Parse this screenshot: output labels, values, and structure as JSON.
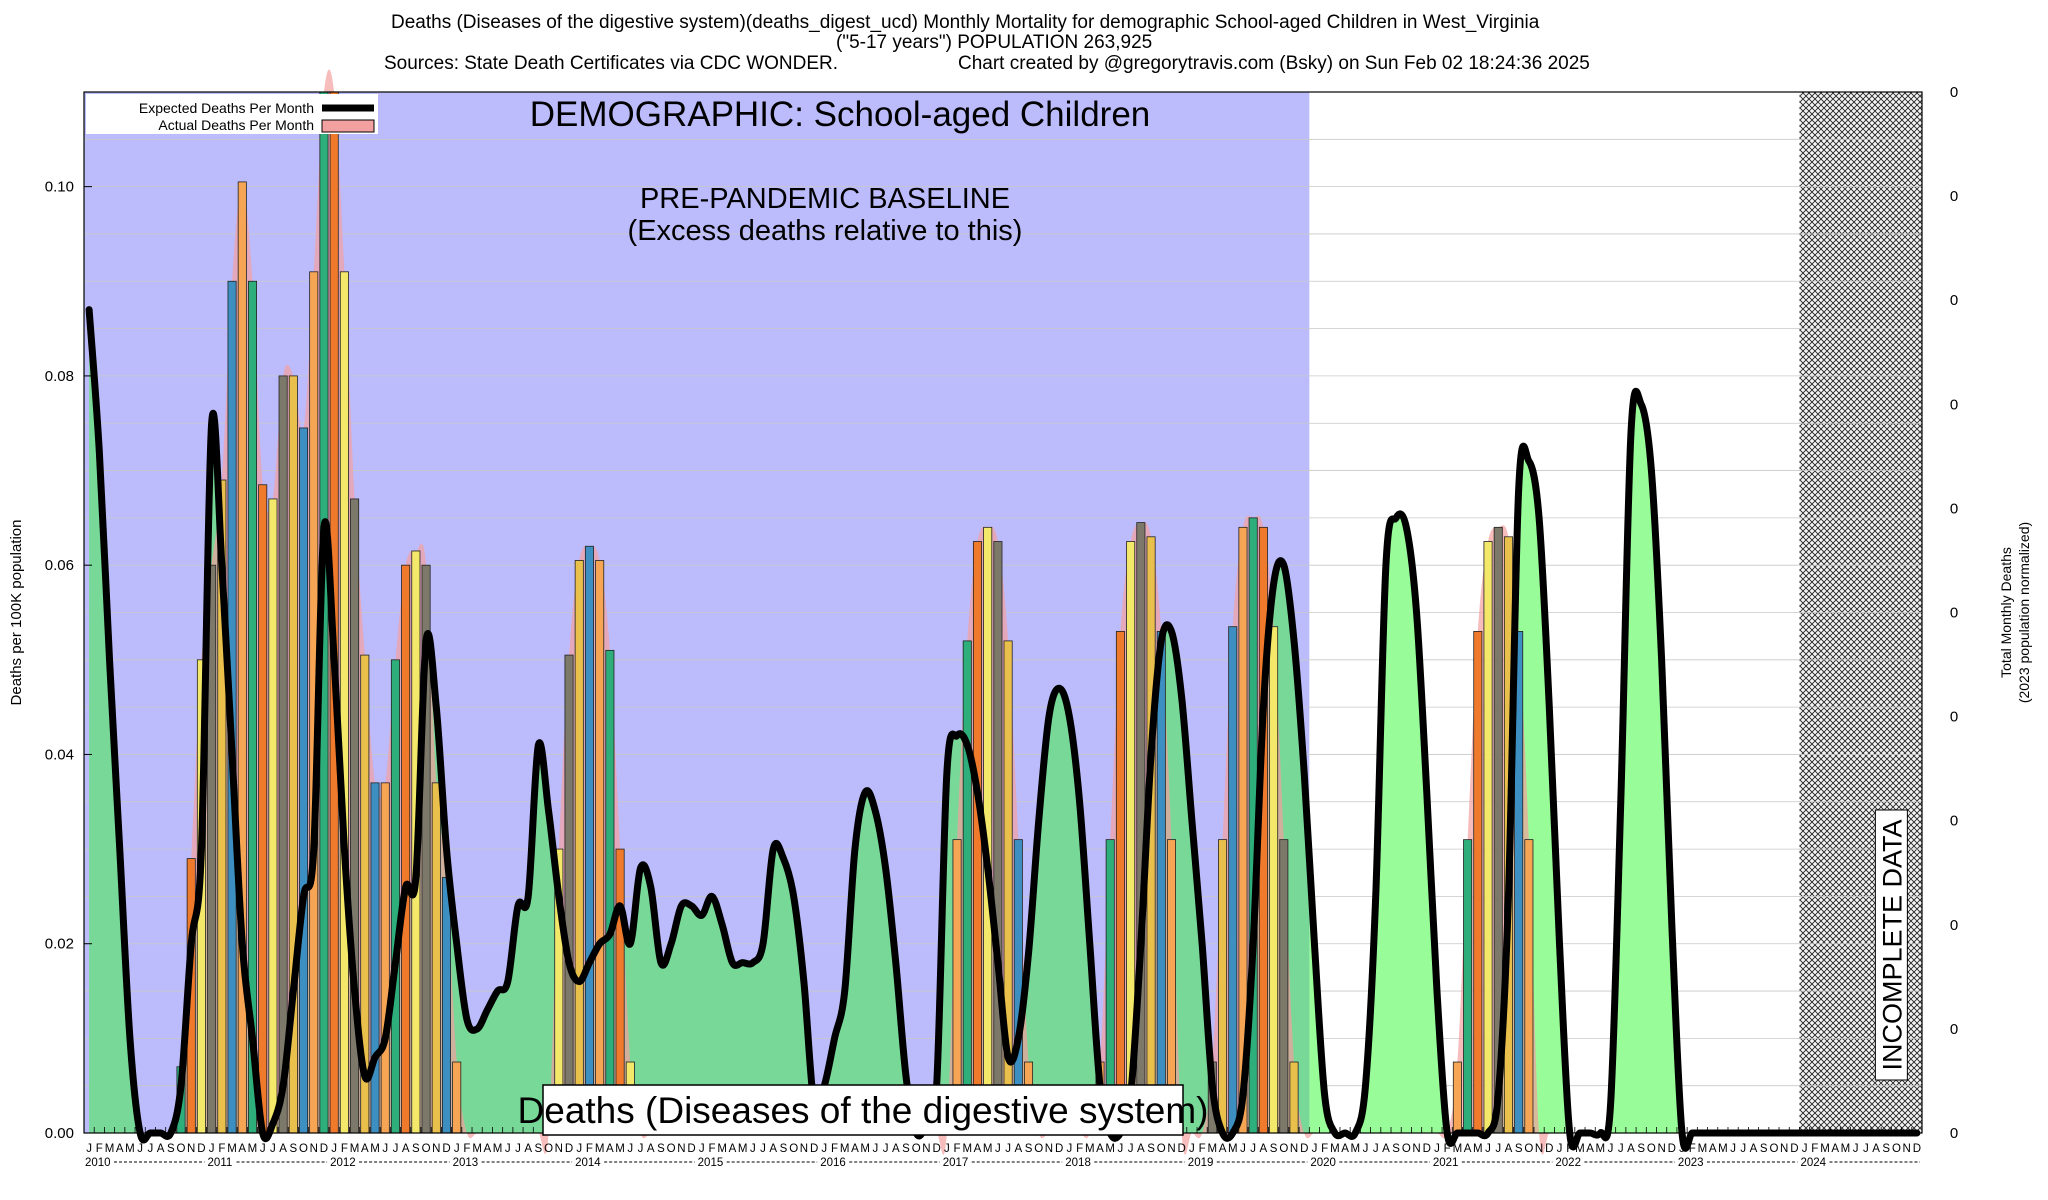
{
  "header": {
    "title_line1": "Deaths (Diseases of the digestive system)(deaths_digest_ucd) Monthly Mortality for demographic School-aged Children in West_Virginia",
    "title_line2": "(\"5-17 years\") POPULATION 263,925",
    "sources": "Sources: State Death Certificates via CDC WONDER.",
    "created_by": "Chart created by @gregorytravis.com (Bsky) on Sun Feb 02 18:24:36 2025"
  },
  "chart_data": {
    "type": "bar",
    "title": "Deaths (Diseases of the digestive system)",
    "demographic_label": "DEMOGRAPHIC: School-aged Children",
    "baseline_label_line1": "PRE-PANDEMIC BASELINE",
    "baseline_label_line2": "(Excess deaths relative to this)",
    "incomplete_label": "INCOMPLETE DATA",
    "ylabel": "Deaths per 100K population",
    "ylabel_right_line1": "Total Monthly Deaths",
    "ylabel_right_line2": "(2023 population normalized)",
    "ylim": [
      0,
      0.11
    ],
    "y_ticks": [
      0.0,
      0.02,
      0.04,
      0.06,
      0.08,
      0.1
    ],
    "y_tick_labels": [
      "0.00",
      "0.02",
      "0.04",
      "0.06",
      "0.08",
      "0.10"
    ],
    "right_tick_labels": [
      "0",
      "0",
      "0",
      "0",
      "0",
      "0",
      "0",
      "0",
      "0",
      "0",
      "0"
    ],
    "legend": {
      "placement": "top-left",
      "expected": "Expected Deaths Per Month",
      "actual": "Actual Deaths Per Month"
    },
    "baseline_period": {
      "start": "2010-01",
      "end": "2019-12"
    },
    "incomplete_period": {
      "start": "2024-01",
      "end": "2024-12"
    },
    "month_letters": [
      "J",
      "F",
      "M",
      "A",
      "M",
      "J",
      "J",
      "A",
      "S",
      "O",
      "N",
      "D"
    ],
    "years": [
      "2010",
      "2011",
      "2012",
      "2013",
      "2014",
      "2015",
      "2016",
      "2017",
      "2018",
      "2019",
      "2020",
      "2021",
      "2022",
      "2023",
      "2024"
    ],
    "x_start": "2010-01",
    "actual_monthly": [
      0,
      0,
      0,
      0,
      0,
      0,
      0,
      0,
      0,
      0.007,
      0.029,
      0.05,
      0.06,
      0.069,
      0.09,
      0.1005,
      0.09,
      0.0685,
      0.067,
      0.08,
      0.08,
      0.0745,
      0.091,
      0.112,
      0.112,
      0.091,
      0.067,
      0.0505,
      0.037,
      0.037,
      0.05,
      0.06,
      0.0615,
      0.06,
      0.037,
      0.027,
      0.0075,
      0,
      0,
      0,
      0,
      0,
      0,
      0,
      0,
      0,
      0.03,
      0.0505,
      0.0605,
      0.062,
      0.0605,
      0.051,
      0.03,
      0.0075,
      0,
      0,
      0,
      0,
      0,
      0,
      0,
      0,
      0,
      0,
      0,
      0,
      0,
      0,
      0,
      0,
      0,
      0,
      0,
      0,
      0,
      0,
      0,
      0,
      0,
      0,
      0,
      0,
      0,
      0,
      0,
      0.031,
      0.052,
      0.0625,
      0.064,
      0.0625,
      0.052,
      0.031,
      0.0075,
      0,
      0,
      0,
      0,
      0,
      0,
      0.0075,
      0.031,
      0.053,
      0.0625,
      0.0645,
      0.063,
      0.053,
      0.031,
      0,
      0,
      0,
      0.0075,
      0.031,
      0.0535,
      0.064,
      0.065,
      0.064,
      0.0535,
      0.031,
      0.0075,
      0,
      0,
      0,
      0,
      0,
      0,
      0,
      0,
      0,
      0,
      0,
      0,
      0,
      0,
      0,
      0.0075,
      0.031,
      0.053,
      0.0625,
      0.064,
      0.063,
      0.053,
      0.031,
      0,
      0,
      0,
      0,
      0,
      0,
      0,
      0,
      0,
      0,
      0,
      0,
      0,
      0,
      0,
      0,
      0,
      0,
      0,
      0,
      0,
      0,
      0,
      0,
      0,
      0,
      0,
      0,
      0,
      0,
      0,
      0,
      0,
      0,
      0,
      0,
      0,
      0
    ],
    "expected_monthly": [
      0.087,
      0.072,
      0.05,
      0.03,
      0.01,
      0,
      0,
      0,
      0,
      0.005,
      0.02,
      0.03,
      0.075,
      0.06,
      0.04,
      0.02,
      0.01,
      0,
      0.001,
      0.005,
      0.015,
      0.025,
      0.03,
      0.064,
      0.05,
      0.03,
      0.015,
      0.006,
      0.008,
      0.01,
      0.018,
      0.026,
      0.027,
      0.052,
      0.045,
      0.03,
      0.02,
      0.012,
      0.011,
      0.013,
      0.015,
      0.016,
      0.024,
      0.025,
      0.041,
      0.034,
      0.025,
      0.018,
      0.016,
      0.018,
      0.02,
      0.021,
      0.024,
      0.02,
      0.028,
      0.026,
      0.018,
      0.02,
      0.024,
      0.024,
      0.023,
      0.025,
      0.022,
      0.018,
      0.018,
      0.018,
      0.02,
      0.03,
      0.029,
      0.025,
      0.016,
      0.003,
      0.005,
      0.01,
      0.015,
      0.03,
      0.036,
      0.034,
      0.028,
      0.018,
      0.006,
      0,
      0.001,
      0.005,
      0.038,
      0.042,
      0.041,
      0.036,
      0.028,
      0.018,
      0.008,
      0.01,
      0.019,
      0.033,
      0.044,
      0.047,
      0.044,
      0.035,
      0.02,
      0.005,
      0,
      0,
      0.004,
      0.02,
      0.04,
      0.052,
      0.053,
      0.046,
      0.033,
      0.02,
      0.005,
      0,
      0,
      0.004,
      0.02,
      0.045,
      0.058,
      0.06,
      0.052,
      0.038,
      0.02,
      0.004,
      0,
      0,
      0,
      0.005,
      0.025,
      0.06,
      0.065,
      0.064,
      0.055,
      0.036,
      0.015,
      0,
      0,
      0,
      0,
      0,
      0.004,
      0.025,
      0.068,
      0.071,
      0.065,
      0.045,
      0.02,
      0,
      0,
      0,
      0,
      0.003,
      0.035,
      0.074,
      0.077,
      0.07,
      0.05,
      0.022,
      0,
      0,
      0,
      0,
      0,
      0,
      0,
      0,
      0,
      0,
      0,
      0,
      0,
      0,
      0,
      0,
      0,
      0,
      0,
      0,
      0,
      0,
      0,
      0
    ],
    "colors": {
      "baseline_region": "#bcbcfc",
      "expected_fill": "#98fc98",
      "expected_fill_baseline": "#78d898",
      "expected_line": "#000000",
      "actual_envelope": "#f3a0a0",
      "bar_palette": [
        "#3c8fc0",
        "#7c786a",
        "#f07a2c",
        "#f6a554",
        "#eac04c",
        "#f3e86a",
        "#2dae7a"
      ]
    }
  }
}
